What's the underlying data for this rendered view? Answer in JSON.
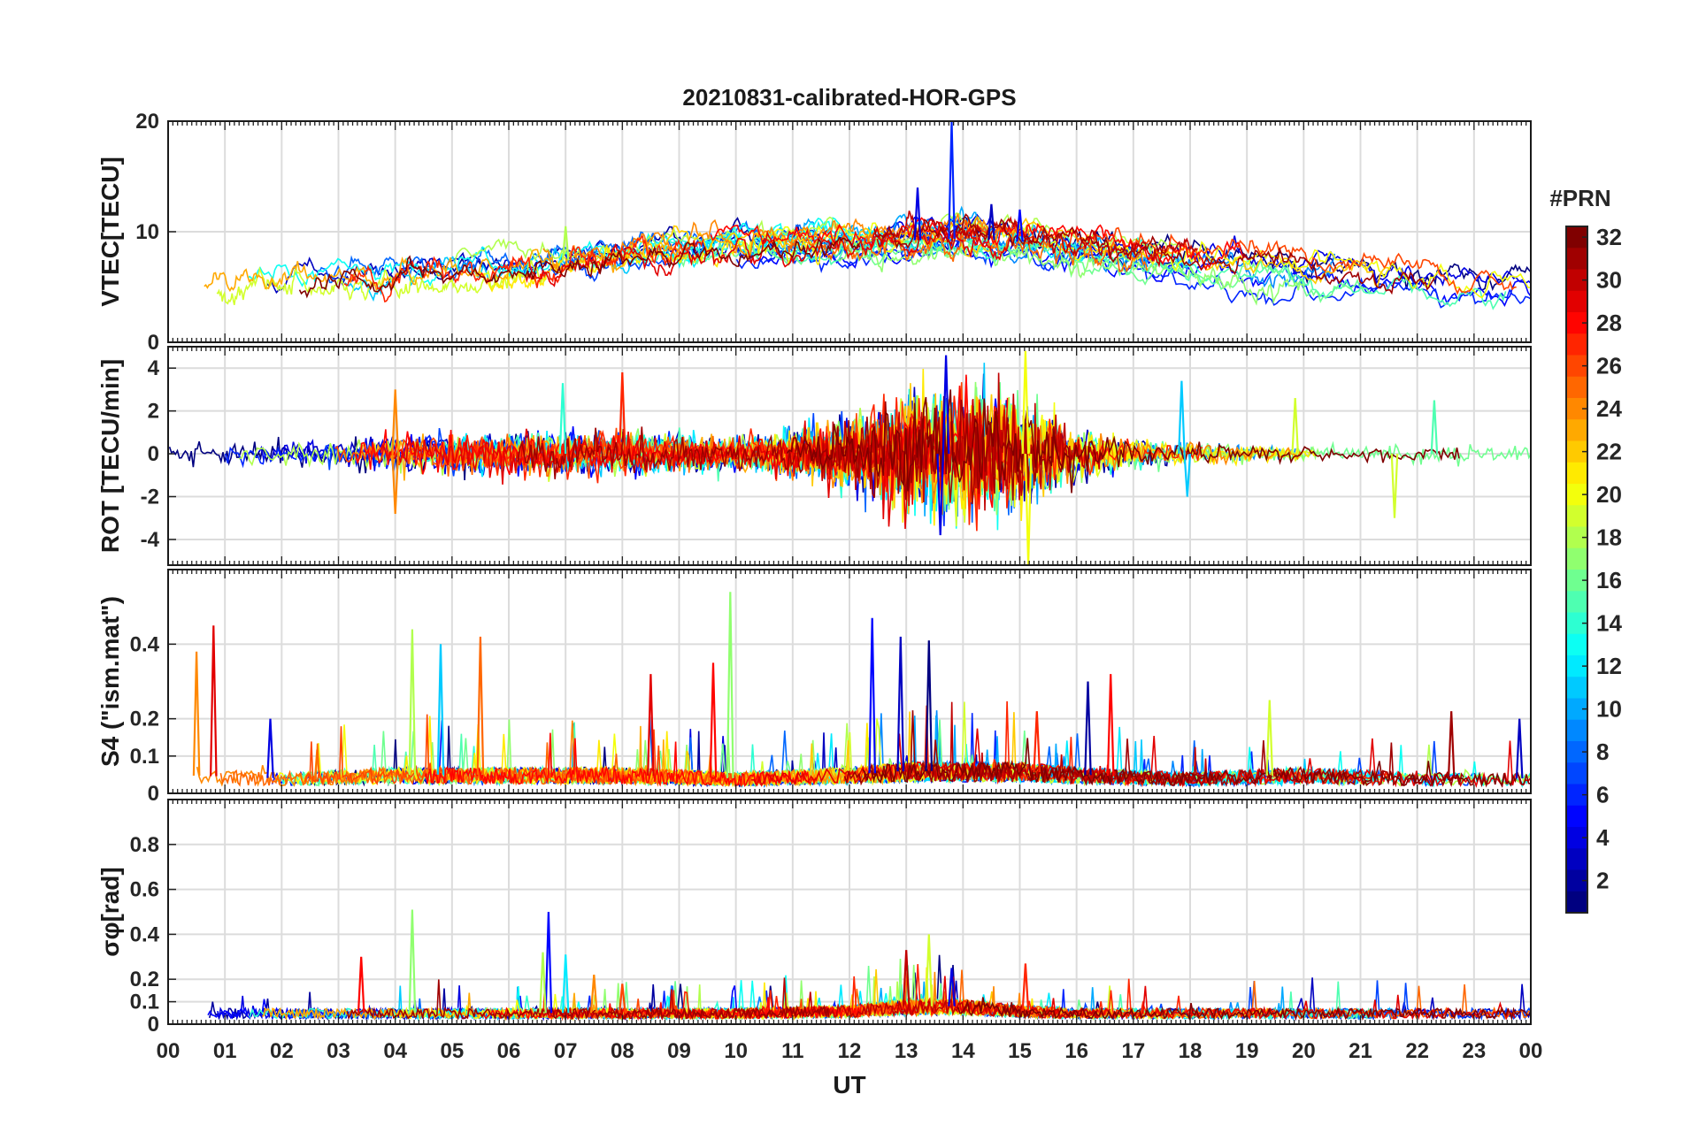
{
  "chart_data": {
    "type": "line",
    "title": "20210831-calibrated-HOR-GPS",
    "xlabel": "UT",
    "x_ticks": [
      "00",
      "01",
      "02",
      "03",
      "04",
      "05",
      "06",
      "07",
      "08",
      "09",
      "10",
      "11",
      "12",
      "13",
      "14",
      "15",
      "16",
      "17",
      "18",
      "19",
      "20",
      "21",
      "22",
      "23",
      "00"
    ],
    "xlim_hours": [
      0,
      24
    ],
    "grid": true,
    "colorbar": {
      "title": "#PRN",
      "range": [
        1,
        32
      ],
      "ticks": [
        2,
        4,
        6,
        8,
        10,
        12,
        14,
        16,
        18,
        20,
        22,
        24,
        26,
        28,
        30,
        32
      ],
      "colormap": "jet",
      "placement": "right"
    },
    "panels": [
      {
        "name": "vtec",
        "ylabel": "VTEC[TECU]",
        "ylim": [
          0,
          20
        ],
        "yticks": [
          0,
          10,
          20
        ],
        "hour_profile": [
          [
            0,
            5.5
          ],
          [
            1,
            5.4
          ],
          [
            2,
            5.6
          ],
          [
            3,
            5.8
          ],
          [
            4,
            5.6
          ],
          [
            5,
            6.2
          ],
          [
            6,
            6.8
          ],
          [
            7,
            7.4
          ],
          [
            8,
            7.6
          ],
          [
            9,
            8.4
          ],
          [
            10,
            8.7
          ],
          [
            11,
            8.9
          ],
          [
            12,
            9.0
          ],
          [
            13,
            9.2
          ],
          [
            14,
            9.4
          ],
          [
            15,
            9.1
          ],
          [
            16,
            8.3
          ],
          [
            17,
            7.6
          ],
          [
            18,
            7.2
          ],
          [
            19,
            6.9
          ],
          [
            20,
            6.2
          ],
          [
            21,
            5.8
          ],
          [
            22,
            5.3
          ],
          [
            23,
            4.9
          ],
          [
            24,
            4.7
          ]
        ],
        "peaks": [
          [
            13.8,
            20.0,
            6
          ],
          [
            13.2,
            14.0,
            4
          ],
          [
            14.5,
            12.5,
            3
          ],
          [
            15.0,
            12.0,
            5
          ],
          [
            7.0,
            10.5,
            18
          ]
        ]
      },
      {
        "name": "rot",
        "ylabel": "ROT [TECU/min]",
        "ylim": [
          -5.2,
          5.0
        ],
        "yticks": [
          -4,
          -2,
          0,
          2,
          4
        ],
        "hour_profile": [
          [
            0,
            0.4
          ],
          [
            3,
            0.5
          ],
          [
            4,
            0.8
          ],
          [
            6,
            0.8
          ],
          [
            8,
            0.8
          ],
          [
            10,
            0.6
          ],
          [
            11,
            0.8
          ],
          [
            12,
            1.3
          ],
          [
            12.6,
            1.8
          ],
          [
            13,
            2.2
          ],
          [
            14,
            2.6
          ],
          [
            15,
            2.1
          ],
          [
            16,
            1.0
          ],
          [
            17,
            0.6
          ],
          [
            18,
            0.4
          ],
          [
            20,
            0.3
          ],
          [
            22,
            0.4
          ],
          [
            24,
            0.3
          ]
        ],
        "peaks": [
          [
            15.1,
            4.8,
            20
          ],
          [
            15.15,
            -5.2,
            20
          ],
          [
            13.7,
            4.6,
            4
          ],
          [
            13.6,
            -3.8,
            4
          ],
          [
            8.0,
            3.8,
            27
          ],
          [
            4.0,
            3.0,
            24
          ],
          [
            4.0,
            -2.8,
            24
          ],
          [
            6.95,
            3.3,
            14
          ],
          [
            17.85,
            3.4,
            11
          ],
          [
            17.95,
            -2.0,
            11
          ],
          [
            21.6,
            -3.0,
            19
          ],
          [
            22.3,
            2.5,
            15
          ],
          [
            19.85,
            2.6,
            19
          ]
        ]
      },
      {
        "name": "s4",
        "ylabel": "S4 (\"ism.mat\")",
        "ylim": [
          0,
          0.6
        ],
        "yticks": [
          0,
          0.1,
          0.2,
          0.4
        ],
        "ytick_labels": [
          "0",
          "0.1",
          "0.2",
          "0.4"
        ],
        "hour_profile": [
          [
            0,
            0.05
          ],
          [
            2,
            0.04
          ],
          [
            4,
            0.05
          ],
          [
            6,
            0.05
          ],
          [
            8,
            0.05
          ],
          [
            10,
            0.04
          ],
          [
            12,
            0.05
          ],
          [
            13,
            0.06
          ],
          [
            14,
            0.06
          ],
          [
            15,
            0.06
          ],
          [
            16,
            0.05
          ],
          [
            18,
            0.04
          ],
          [
            20,
            0.05
          ],
          [
            22,
            0.04
          ],
          [
            24,
            0.04
          ]
        ],
        "peaks": [
          [
            0.8,
            0.45,
            29
          ],
          [
            0.5,
            0.38,
            24
          ],
          [
            4.3,
            0.44,
            18
          ],
          [
            4.8,
            0.4,
            11
          ],
          [
            5.5,
            0.42,
            25
          ],
          [
            9.9,
            0.54,
            17
          ],
          [
            12.4,
            0.47,
            5
          ],
          [
            12.9,
            0.42,
            3
          ],
          [
            13.4,
            0.41,
            1
          ],
          [
            9.6,
            0.35,
            28
          ],
          [
            8.5,
            0.32,
            29
          ],
          [
            16.2,
            0.3,
            2
          ],
          [
            16.6,
            0.32,
            28
          ],
          [
            15.3,
            0.22,
            27
          ],
          [
            19.4,
            0.25,
            19
          ],
          [
            22.6,
            0.22,
            31
          ],
          [
            23.8,
            0.2,
            3
          ],
          [
            1.8,
            0.2,
            4
          ]
        ]
      },
      {
        "name": "sigma_phi",
        "ylabel": "σφ[rad]",
        "ylim": [
          0,
          1.0
        ],
        "yticks": [
          0,
          0.1,
          0.2,
          0.4,
          0.6,
          0.8
        ],
        "ytick_labels": [
          "0",
          "0.1",
          "0.2",
          "0.4",
          "0.6",
          "0.8"
        ],
        "hour_profile": [
          [
            0,
            0.05
          ],
          [
            6,
            0.05
          ],
          [
            10,
            0.05
          ],
          [
            12,
            0.06
          ],
          [
            13,
            0.08
          ],
          [
            14,
            0.08
          ],
          [
            15,
            0.06
          ],
          [
            16,
            0.05
          ],
          [
            24,
            0.05
          ]
        ],
        "peaks": [
          [
            3.4,
            0.3,
            28
          ],
          [
            4.3,
            0.51,
            17
          ],
          [
            6.7,
            0.5,
            5
          ],
          [
            6.6,
            0.32,
            18
          ],
          [
            7.0,
            0.31,
            12
          ],
          [
            7.5,
            0.22,
            24
          ],
          [
            13.0,
            0.33,
            30
          ],
          [
            13.4,
            0.4,
            19
          ],
          [
            13.8,
            0.25,
            4
          ],
          [
            15.1,
            0.27,
            27
          ],
          [
            8.0,
            0.18,
            26
          ]
        ]
      }
    ]
  }
}
